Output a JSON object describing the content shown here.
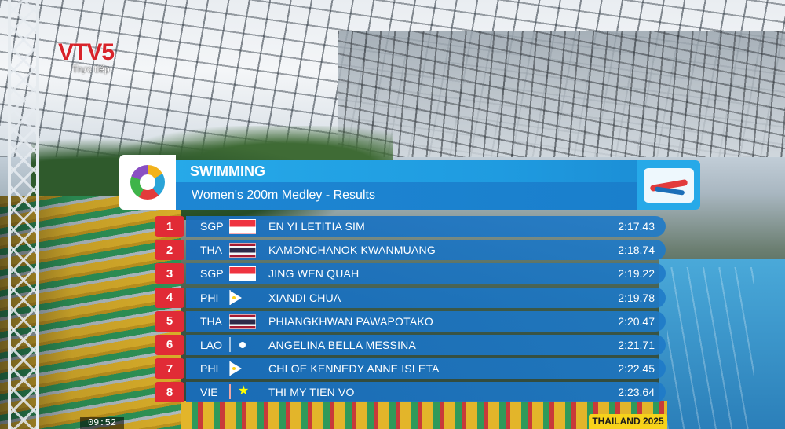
{
  "broadcaster": {
    "logo": "VTV5",
    "subtitle": "Trực tiếp"
  },
  "board": {
    "sport": "SWIMMING",
    "event": "Women's 200m Medley - Results"
  },
  "results": [
    {
      "rank": "1",
      "noc": "SGP",
      "flag": "sgp",
      "name": "EN YI LETITIA SIM",
      "time": "2:17.43"
    },
    {
      "rank": "2",
      "noc": "THA",
      "flag": "tha",
      "name": "KAMONCHANOK KWANMUANG",
      "time": "2:18.74"
    },
    {
      "rank": "3",
      "noc": "SGP",
      "flag": "sgp",
      "name": "JING WEN QUAH",
      "time": "2:19.22"
    },
    {
      "rank": "4",
      "noc": "PHI",
      "flag": "phi",
      "name": "XIANDI CHUA",
      "time": "2:19.78"
    },
    {
      "rank": "5",
      "noc": "THA",
      "flag": "tha",
      "name": "PHIANGKHWAN PAWAPOTAKO",
      "time": "2:20.47"
    },
    {
      "rank": "6",
      "noc": "LAO",
      "flag": "lao",
      "name": "ANGELINA BELLA MESSINA",
      "time": "2:21.71"
    },
    {
      "rank": "7",
      "noc": "PHI",
      "flag": "phi",
      "name": "CHLOE KENNEDY ANNE ISLETA",
      "time": "2:22.45"
    },
    {
      "rank": "8",
      "noc": "VIE",
      "flag": "vie",
      "name": "THI MY TIEN VO",
      "time": "2:23.64"
    }
  ],
  "footer": {
    "clock": "09:52",
    "tag": "THAILAND 2025"
  },
  "colors": {
    "rank_bg": "#e12b36",
    "title_bar": "#26a9e8",
    "row_bar": "#1e7ac8",
    "footer_tag": "#f7d21a"
  }
}
